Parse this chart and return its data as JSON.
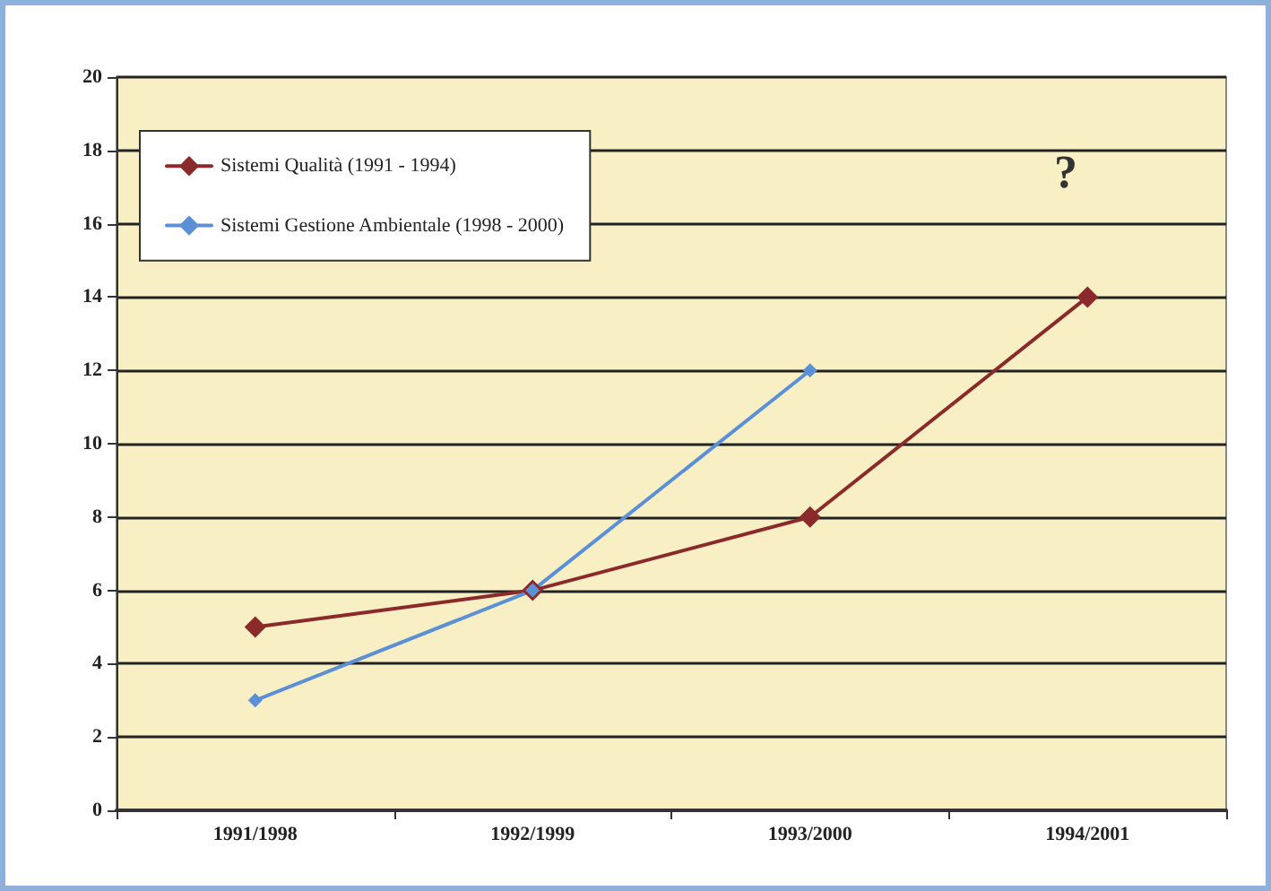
{
  "chart_data": {
    "type": "line",
    "categories": [
      "1991/1998",
      "1992/1999",
      "1993/2000",
      "1994/2001"
    ],
    "series": [
      {
        "name": "Sistemi Qualità (1991 - 1994)",
        "color": "#8b2a2a",
        "values": [
          5,
          6,
          8,
          14
        ]
      },
      {
        "name": "Sistemi Gestione Ambientale (1998 - 2000)",
        "color": "#5b8fd6",
        "values": [
          3,
          6,
          12,
          null
        ]
      }
    ],
    "ylim": [
      0,
      20
    ],
    "yticks": [
      0,
      2,
      4,
      6,
      8,
      10,
      12,
      14,
      16,
      18,
      20
    ],
    "grid": "y",
    "legend": "top left",
    "marker": "diamond",
    "line_style": "solid",
    "annotations": [
      "?"
    ]
  }
}
